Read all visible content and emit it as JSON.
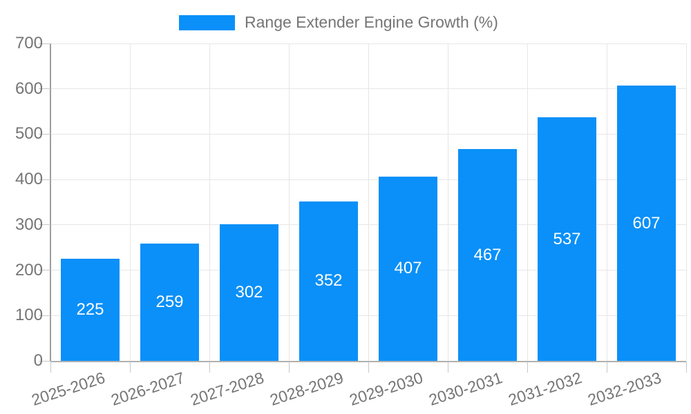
{
  "legend": {
    "label": "Range Extender Engine Growth (%)",
    "swatch_color": "#0a90f8"
  },
  "chart_data": {
    "type": "bar",
    "title": "Range Extender Engine Growth (%)",
    "categories": [
      "2025-2026",
      "2026-2027",
      "2027-2028",
      "2028-2029",
      "2029-2030",
      "2030-2031",
      "2031-2032",
      "2032-2033"
    ],
    "values": [
      225,
      259,
      302,
      352,
      407,
      467,
      537,
      607
    ],
    "series": [
      {
        "name": "Range Extender Engine Growth (%)",
        "values": [
          225,
          259,
          302,
          352,
          407,
          467,
          537,
          607
        ]
      }
    ],
    "xlabel": "",
    "ylabel": "",
    "ylim": [
      0,
      700
    ],
    "yticks": [
      0,
      100,
      200,
      300,
      400,
      500,
      600,
      700
    ],
    "grid": true,
    "legend_position": "top",
    "bar_color": "#0a90f8",
    "bar_label_color": "#ffffff",
    "axis_text_color": "#757575",
    "gridline_color": "#e6e6e6"
  }
}
